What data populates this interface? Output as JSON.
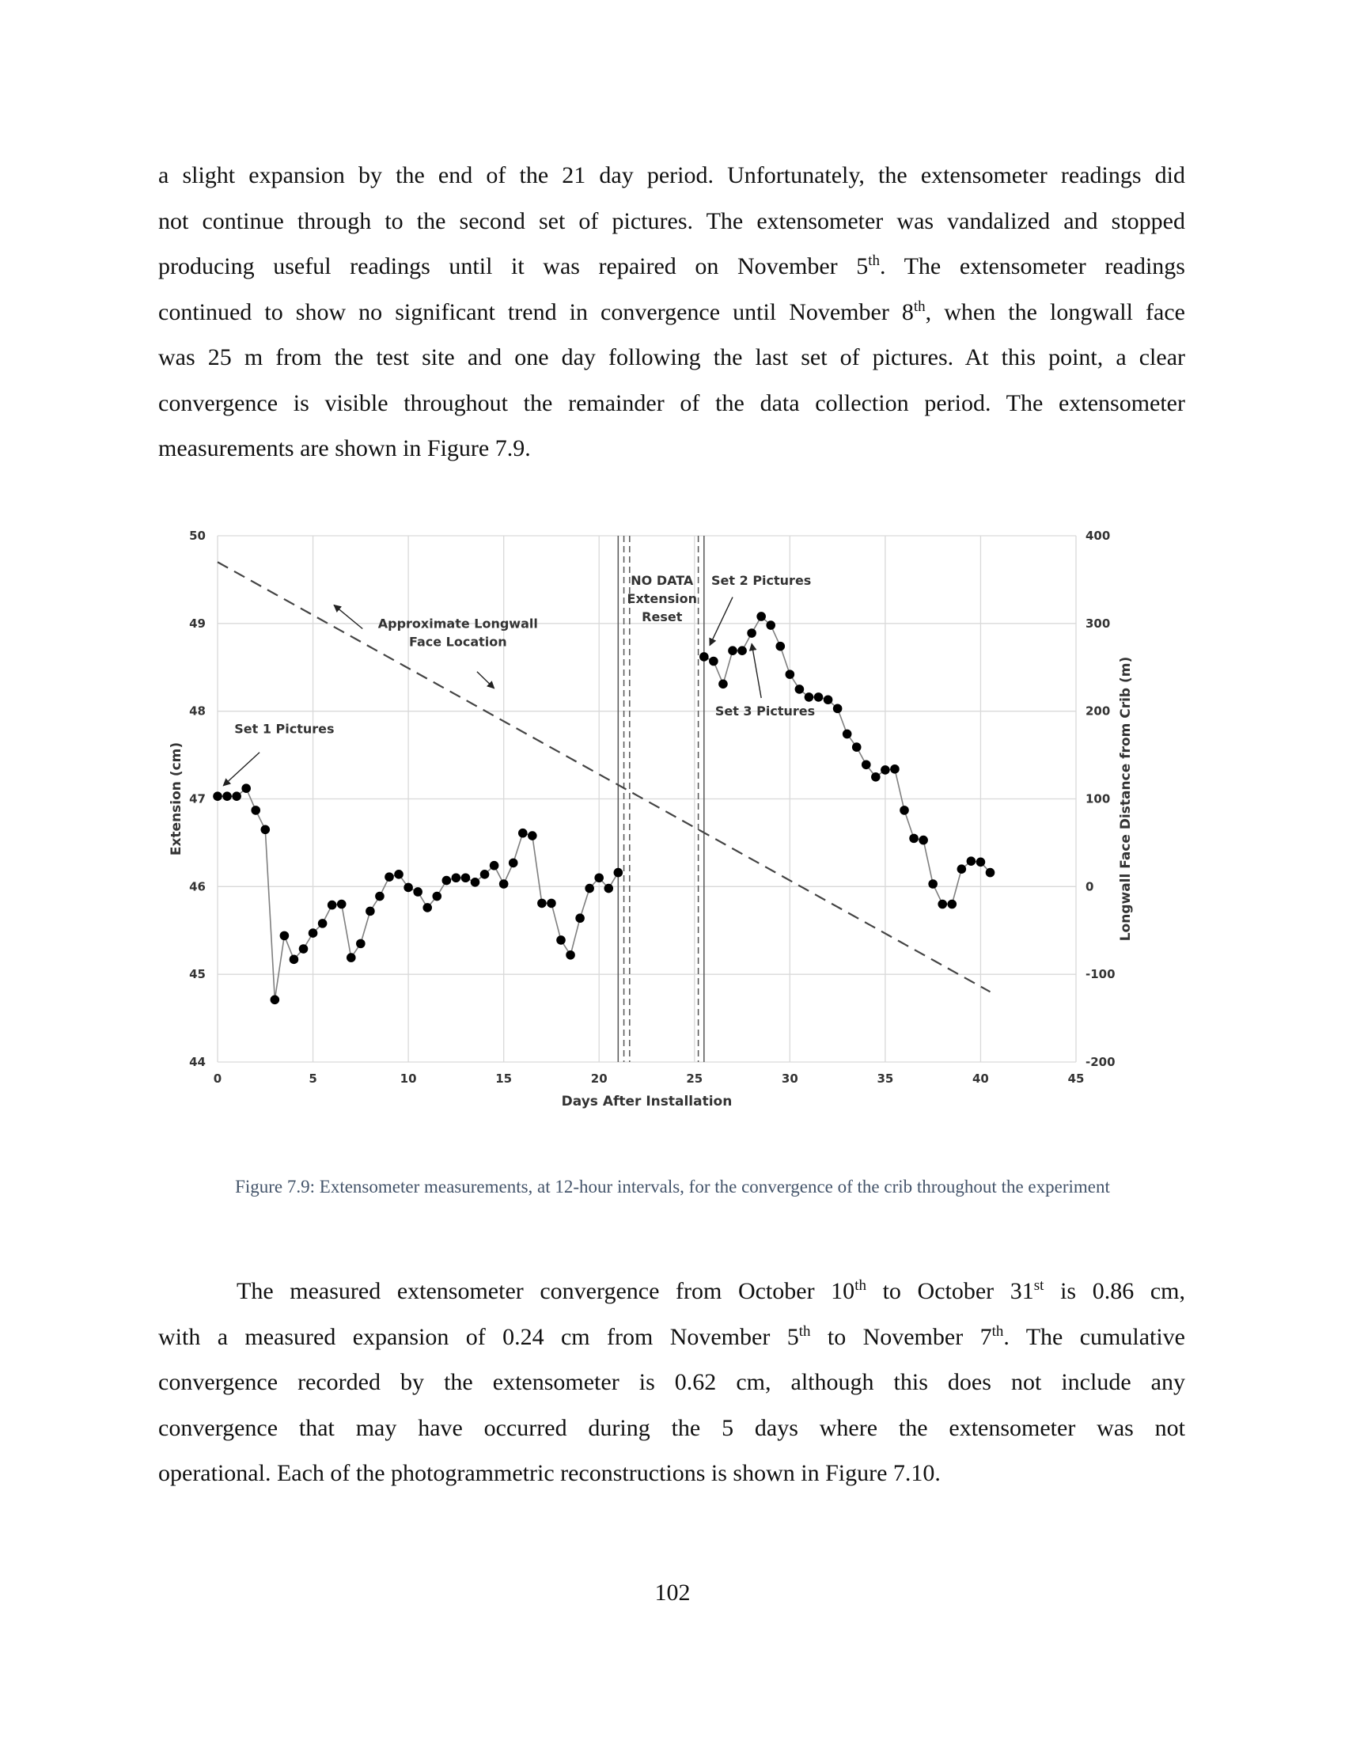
{
  "para1": {
    "lines": [
      [
        "a slight expansion by the end of the 21 day period.  Unfortunately, the extensometer readings did"
      ],
      [
        "not continue through to the second set of pictures.  The extensometer was vandalized and stopped"
      ],
      [
        "producing useful readings until it was repaired on November 5",
        "th",
        ".  The extensometer readings"
      ],
      [
        "continued to show no significant trend in convergence until November 8",
        "th",
        ", when the longwall face"
      ],
      [
        "was 25 m from the test site and one day following the last set of pictures.  At this point, a clear"
      ],
      [
        "convergence is visible throughout the remainder of the data collection period.  The extensometer"
      ],
      [
        "measurements are shown in Figure 7.9."
      ]
    ]
  },
  "caption": "Figure 7.9:  Extensometer measurements, at 12-hour intervals, for the convergence of the crib throughout the experiment",
  "para2": {
    "lines": [
      [
        "The measured extensometer convergence from October 10",
        "th",
        " to October 31",
        "st",
        " is 0.86 cm,"
      ],
      [
        "with a measured expansion of 0.24 cm from November 5",
        "th",
        " to November 7",
        "th",
        ".  The cumulative"
      ],
      [
        "convergence recorded by the extensometer is 0.62 cm, although this does not include any"
      ],
      [
        "convergence that may have occurred during the 5 days where the extensometer was not"
      ],
      [
        "operational.  Each of the photogrammetric reconstructions is shown in Figure 7.10."
      ]
    ]
  },
  "page_number": "102",
  "chart_data": {
    "type": "line",
    "xlabel": "Days After Installation",
    "ylabel": "Extension (cm)",
    "y2label": "Longwall Face Distance from Crib (m)",
    "xlim": [
      0,
      45
    ],
    "ylim": [
      44,
      50
    ],
    "y2lim": [
      -200,
      400
    ],
    "xticks": [
      0,
      5,
      10,
      15,
      20,
      25,
      30,
      35,
      40,
      45
    ],
    "yticks": [
      44,
      45,
      46,
      47,
      48,
      49,
      50
    ],
    "y2ticks": [
      -200,
      -100,
      0,
      100,
      200,
      300,
      400
    ],
    "grid": true,
    "colors": {
      "series": "#000000",
      "line": "#7f7f7f",
      "grid": "#d9d9d9",
      "dashed": "#444444",
      "axis_text": "#333333"
    },
    "series": [
      {
        "name": "",
        "x": [
          0,
          0.5,
          1,
          1.5,
          2,
          2.5,
          3,
          3.5,
          4,
          4.5,
          5,
          5.5,
          6,
          6.5,
          7,
          7.5,
          8,
          8.5,
          9,
          9.5,
          10,
          10.5,
          11,
          11.5,
          12,
          12.5,
          13,
          13.5,
          14,
          14.5,
          15,
          15.5,
          16,
          16.5,
          17,
          17.5,
          18,
          18.5,
          19,
          19.5,
          20,
          20.5,
          21
        ],
        "y": [
          47.03,
          47.03,
          47.03,
          47.12,
          46.87,
          46.65,
          44.71,
          45.44,
          45.17,
          45.29,
          45.47,
          45.58,
          45.79,
          45.8,
          45.19,
          45.35,
          45.72,
          45.89,
          46.11,
          46.14,
          45.99,
          45.94,
          45.76,
          45.89,
          46.07,
          46.1,
          46.1,
          46.05,
          46.14,
          46.24,
          46.03,
          46.27,
          46.61,
          46.58,
          45.81,
          45.81,
          45.39,
          45.22,
          45.64,
          45.98,
          46.1,
          45.98,
          46.16
        ]
      },
      {
        "name": "",
        "x": [
          25.5,
          26,
          26.5,
          27,
          27.5,
          28,
          28.5,
          29,
          29.5,
          30,
          30.5,
          31,
          31.5,
          32,
          32.5,
          33,
          33.5,
          34,
          34.5,
          35,
          35.5,
          36,
          36.5,
          37,
          37.5,
          38,
          38.5,
          39,
          39.5,
          40,
          40.5
        ],
        "y": [
          48.62,
          48.57,
          48.31,
          48.69,
          48.69,
          48.89,
          49.08,
          48.98,
          48.74,
          48.42,
          48.25,
          48.16,
          48.16,
          48.13,
          48.03,
          47.74,
          47.59,
          47.39,
          47.25,
          47.33,
          47.34,
          46.87,
          46.55,
          46.53,
          46.03,
          45.8,
          45.8,
          46.2,
          46.29,
          46.28,
          46.16
        ]
      }
    ],
    "longwall_face": {
      "x": [
        0,
        40.5
      ],
      "y2": [
        370,
        -120
      ]
    },
    "vlines": [
      {
        "x": 21.0,
        "style": "solid"
      },
      {
        "x": 21.3,
        "style": "dashed"
      },
      {
        "x": 21.6,
        "style": "dashed"
      },
      {
        "x": 25.2,
        "style": "dashed"
      },
      {
        "x": 25.5,
        "style": "solid"
      }
    ],
    "annotations": [
      {
        "id": "set1",
        "text": [
          "Set 1 Pictures"
        ],
        "x": 3.5,
        "y": 47.75,
        "arrow_from": [
          2.2,
          47.53
        ],
        "arrow_to": [
          0.3,
          47.15
        ]
      },
      {
        "id": "set2",
        "text": [
          "Set 2 Pictures"
        ],
        "x": 28.5,
        "y": 49.44,
        "arrow_from": [
          27.0,
          49.3
        ],
        "arrow_to": [
          25.8,
          48.75
        ]
      },
      {
        "id": "set3",
        "text": [
          "Set 3 Pictures"
        ],
        "x": 28.7,
        "y": 47.95,
        "arrow_from": [
          28.5,
          48.15
        ],
        "arrow_to": [
          28.0,
          48.77
        ]
      },
      {
        "id": "nodata",
        "text": [
          "NO DATA",
          "Extension",
          "Reset"
        ],
        "x": 23.3,
        "y": 49.44
      },
      {
        "id": "longwall",
        "text": [
          "Approximate Longwall",
          "Face Location"
        ],
        "x": 12.6,
        "y": 48.95,
        "arrow_upleft_from": [
          7.6,
          48.94
        ],
        "arrow_upleft_to": [
          6.1,
          49.21
        ],
        "arrow_downright_from": [
          13.6,
          48.45
        ],
        "arrow_downright_to": [
          14.5,
          48.26
        ]
      }
    ]
  }
}
